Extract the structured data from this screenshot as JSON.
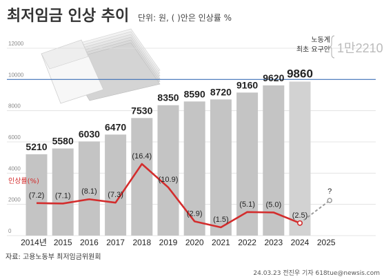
{
  "header": {
    "title": "최저임금 인상 추이",
    "unit": "단위: 원, ( )안은 인상률 %"
  },
  "demand": {
    "line1": "노동계",
    "line2": "최초 요구안",
    "value": "1만2210"
  },
  "footer": {
    "source": "자료: 고용노동부 최저임금위원회",
    "credit": "24.03.23 전진우 기자 618tue@newsis.com"
  },
  "colors": {
    "bar": "#c4c4c4",
    "bar_last": "#d2d2d2",
    "rate_line": "#d32d2d",
    "reference_line": "#3b6fb6",
    "projection": "#9a9a9a"
  },
  "chart_data": {
    "type": "bar",
    "categories": [
      "2014년",
      "2015",
      "2016",
      "2017",
      "2018",
      "2019",
      "2020",
      "2021",
      "2022",
      "2023",
      "2024",
      "2025"
    ],
    "series": [
      {
        "name": "",
        "values": [
          5210,
          5580,
          6030,
          6470,
          7530,
          8350,
          8590,
          8720,
          9160,
          9620,
          9860,
          null
        ],
        "labels": [
          "5210",
          "5580",
          "6030",
          "6470",
          "7530",
          "8350",
          "8590",
          "8720",
          "9160",
          "9620",
          "9860",
          ""
        ]
      },
      {
        "name": "인상률(%)",
        "type": "line",
        "values": [
          7.2,
          7.1,
          8.1,
          7.3,
          16.4,
          10.9,
          2.9,
          1.5,
          5.1,
          5.0,
          2.5,
          null
        ],
        "labels": [
          "(7.2)",
          "(7.1)",
          "(8.1)",
          "(7.3)",
          "(16.4)",
          "(10.9)",
          "(2.9)",
          "(1.5)",
          "(5.1)",
          "(5.0)",
          "(2.5)",
          ""
        ],
        "projection_label": "?"
      }
    ],
    "ylim": [
      0,
      12000
    ],
    "yticks": [
      "0",
      "2000",
      "4000",
      "6000",
      "8000",
      "10000",
      "12000"
    ],
    "reference_line": 10000,
    "grid": true
  }
}
